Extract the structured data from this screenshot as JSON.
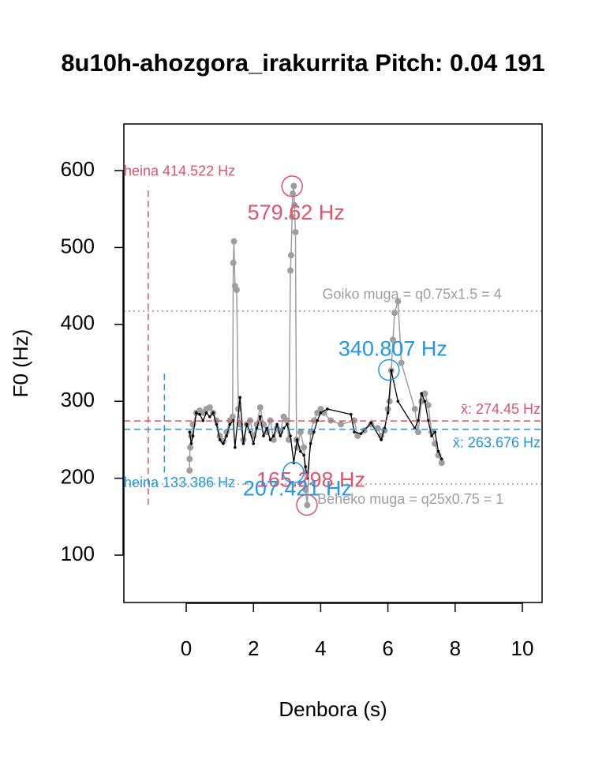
{
  "chart_data": {
    "type": "line",
    "title": "8u10h-ahozgora_irakurrita Pitch: 0.04 191",
    "x_label": "Denbora (s)",
    "y_label": "F0 (Hz)",
    "xlim": [
      -1.855,
      10.587
    ],
    "ylim": [
      38.4,
      660.6
    ],
    "xticks": [
      0,
      2,
      4,
      6,
      8,
      10
    ],
    "yticks": [
      100,
      200,
      300,
      400,
      500,
      600
    ],
    "grid": false,
    "series": [
      {
        "color": "#9e9e9e",
        "x": [
          0.1,
          0.1,
          0.12,
          0.15,
          0.2,
          0.3,
          0.4,
          0.5,
          0.6,
          0.7,
          0.8,
          0.9,
          1.0,
          1.1,
          1.2,
          1.3,
          1.38,
          1.4,
          1.42,
          1.45,
          1.5,
          1.55,
          1.6,
          1.7,
          1.8,
          1.9,
          2.0,
          2.1,
          2.2,
          2.3,
          2.4,
          2.5,
          2.6,
          2.7,
          2.8,
          2.9,
          3.0,
          3.05,
          3.1,
          3.12,
          3.15,
          3.17,
          3.2,
          3.22,
          3.25,
          3.28,
          3.3,
          3.4,
          3.5,
          3.55,
          3.6,
          3.7,
          3.8,
          3.9,
          4.0,
          4.1,
          4.3,
          4.6,
          5.0,
          5.1,
          5.3,
          5.5,
          5.7,
          5.8,
          5.9,
          6.0,
          6.05,
          6.1,
          6.15,
          6.2,
          6.3,
          6.4,
          6.8,
          6.9,
          7.0,
          7.1,
          7.2,
          7.3,
          7.4,
          7.5,
          7.6
        ],
        "values": [
          210,
          225,
          240,
          255,
          270,
          285,
          288,
          285,
          290,
          292,
          285,
          275,
          255,
          248,
          260,
          275,
          280,
          480,
          508,
          450,
          445,
          290,
          270,
          250,
          270,
          275,
          255,
          270,
          292,
          270,
          260,
          275,
          250,
          265,
          260,
          280,
          275,
          250,
          470,
          490,
          540,
          570,
          580,
          555,
          520,
          250,
          240,
          260,
          240,
          185,
          165,
          260,
          275,
          285,
          290,
          285,
          275,
          270,
          275,
          255,
          262,
          270,
          265,
          255,
          262,
          290,
          300,
          340,
          380,
          415,
          430,
          350,
          290,
          260,
          300,
          310,
          295,
          260,
          245,
          230,
          220
        ]
      },
      {
        "color": "#000000",
        "x": [
          0.1,
          0.15,
          0.2,
          0.3,
          0.4,
          0.5,
          0.6,
          0.7,
          0.8,
          0.9,
          1.0,
          1.1,
          1.2,
          1.3,
          1.4,
          1.45,
          1.6,
          1.7,
          1.8,
          1.9,
          2.0,
          2.1,
          2.2,
          2.3,
          2.4,
          2.5,
          2.6,
          2.7,
          2.8,
          2.9,
          3.0,
          3.1,
          3.2,
          3.3,
          3.4,
          3.5,
          3.55,
          3.6,
          3.7,
          3.8,
          3.9,
          4.0,
          4.2,
          4.9,
          5.0,
          5.2,
          5.5,
          5.8,
          5.9,
          6.0,
          6.1,
          6.3,
          6.8,
          6.9,
          7.0,
          7.1,
          7.2,
          7.3,
          7.4,
          7.5,
          7.6
        ],
        "values": [
          260,
          245,
          255,
          285,
          283,
          275,
          285,
          280,
          285,
          270,
          250,
          245,
          255,
          270,
          275,
          240,
          305,
          245,
          270,
          260,
          245,
          265,
          280,
          255,
          265,
          250,
          255,
          270,
          255,
          265,
          270,
          255,
          220,
          250,
          235,
          230,
          215,
          200,
          245,
          260,
          275,
          285,
          290,
          283,
          260,
          258,
          272,
          250,
          265,
          285,
          340,
          300,
          265,
          275,
          310,
          300,
          275,
          255,
          260,
          235,
          225
        ]
      }
    ],
    "bounds": [
      {
        "value": 417.3,
        "label": "Goiko muga = q0.75x1.5 =  4",
        "label_x": 4.05
      },
      {
        "value": 192.4,
        "label": "Beheko muga = q25x0.75 =  1",
        "label_x": 3.9
      }
    ],
    "summaries": [
      {
        "color": "#df536b",
        "range": 414.522,
        "range_label": "heina 414.522 Hz",
        "range_x": -1.13,
        "mean": 274.45,
        "mean_label": "x̄: 274.45 Hz",
        "max": {
          "x": 3.15,
          "value": 579.62,
          "label": "579.62 Hz"
        },
        "min": {
          "x": 3.59,
          "value": 165.298,
          "label": "165.298 Hz"
        }
      },
      {
        "color": "#2297e6",
        "range": 133.386,
        "range_label": "heina 133.386 Hz",
        "range_x": -0.65,
        "mean": 263.676,
        "mean_label": "x̄: 263.676 Hz",
        "max": {
          "x": 6.03,
          "value": 340.807,
          "label": "340.807 Hz"
        },
        "min": {
          "x": 3.19,
          "value": 207.421,
          "label": "207.421 Hz"
        }
      }
    ]
  }
}
